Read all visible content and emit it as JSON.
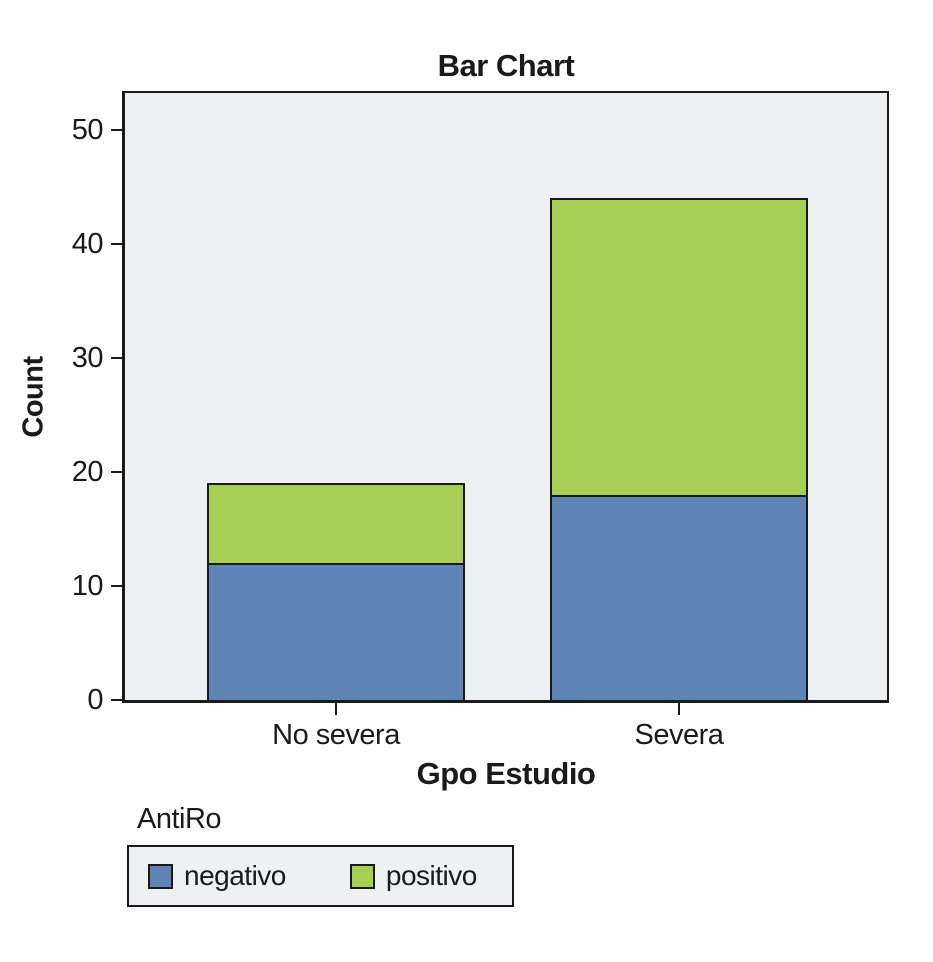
{
  "chart_data": {
    "type": "bar",
    "stacked": true,
    "title": "Bar Chart",
    "xlabel": "Gpo Estudio",
    "ylabel": "Count",
    "categories": [
      "No severa",
      "Severa"
    ],
    "series": [
      {
        "name": "negativo",
        "color": "#5d84b4",
        "values": [
          12,
          18
        ]
      },
      {
        "name": "positivo",
        "color": "#a7cf55",
        "values": [
          7,
          26
        ]
      }
    ],
    "totals": [
      19,
      44
    ],
    "ylim": [
      0,
      53.2
    ],
    "yticks": [
      0,
      10,
      20,
      30,
      40,
      50
    ],
    "grid": false,
    "legend_position": "below-left",
    "plot_background": "#eef1f2",
    "axis_color": "#1a1a1a"
  },
  "legend": {
    "title": "AntiRo",
    "items": [
      {
        "label": "negativo",
        "color": "#5d84b4"
      },
      {
        "label": "positivo",
        "color": "#a7cf55"
      }
    ]
  }
}
